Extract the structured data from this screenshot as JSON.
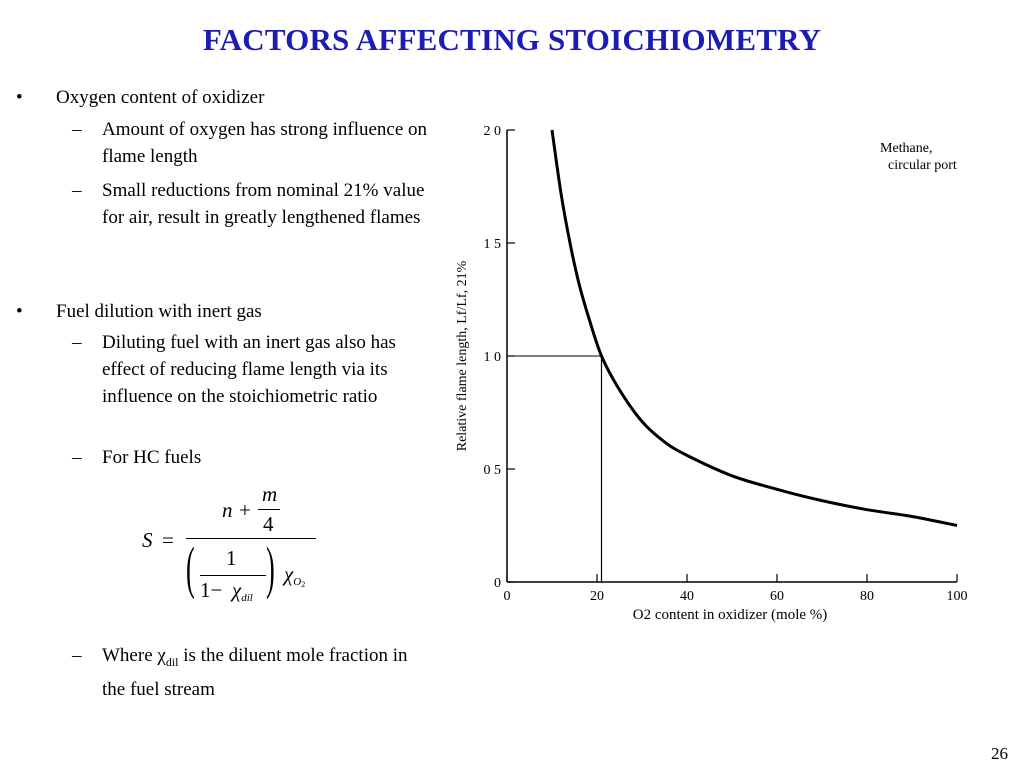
{
  "slide": {
    "title": "FACTORS AFFECTING STOICHIOMETRY",
    "page_number": "26",
    "bullets": [
      {
        "text": "Oxygen content of oxidizer"
      },
      {
        "text": "Fuel dilution with inert gas"
      }
    ],
    "sub_bullets": [
      "Amount of oxygen has strong influence on flame length",
      "Small reductions from nominal 21% value for air, result in greatly lengthened flames",
      "Diluting fuel with an inert gas also has effect of reducing flame length via its influence on the stoichiometric ratio",
      "For HC fuels"
    ],
    "where_note": {
      "prefix": "Where ",
      "symbol": "χ",
      "subscript": "dil",
      "suffix": " is the diluent mole fraction in the fuel stream"
    },
    "formula": {
      "lhs": "S",
      "equals": "=",
      "n": "n",
      "plus": "+",
      "m": "m",
      "four": "4",
      "one": "1",
      "one_minus": "1−",
      "chi": "χ",
      "dil": "dil",
      "chi_o2": "χ",
      "o2_sub": "O",
      "o2_num": "2"
    }
  },
  "chart_data": {
    "type": "line",
    "annotation": [
      "Methane,",
      "circular port"
    ],
    "ylabel": "Relative flame length, Lf/Lf, 21%",
    "xlabel": "O2 content in oxidizer (mole %)",
    "xlim": [
      0,
      100
    ],
    "ylim": [
      0,
      2.0
    ],
    "x_ticks": [
      "0",
      "20",
      "40",
      "60",
      "80",
      "100"
    ],
    "y_ticks": [
      "0",
      "0 5",
      "1 0",
      "1 5",
      "2 0"
    ],
    "reference_point": {
      "x": 21,
      "y": 1.0
    },
    "series": [
      {
        "x": [
          10,
          12,
          14,
          16,
          18,
          21,
          25,
          30,
          35,
          40,
          50,
          60,
          70,
          80,
          90,
          100
        ],
        "y": [
          2.0,
          1.72,
          1.5,
          1.32,
          1.18,
          1.0,
          0.85,
          0.71,
          0.62,
          0.56,
          0.47,
          0.41,
          0.36,
          0.32,
          0.29,
          0.25
        ]
      }
    ]
  }
}
